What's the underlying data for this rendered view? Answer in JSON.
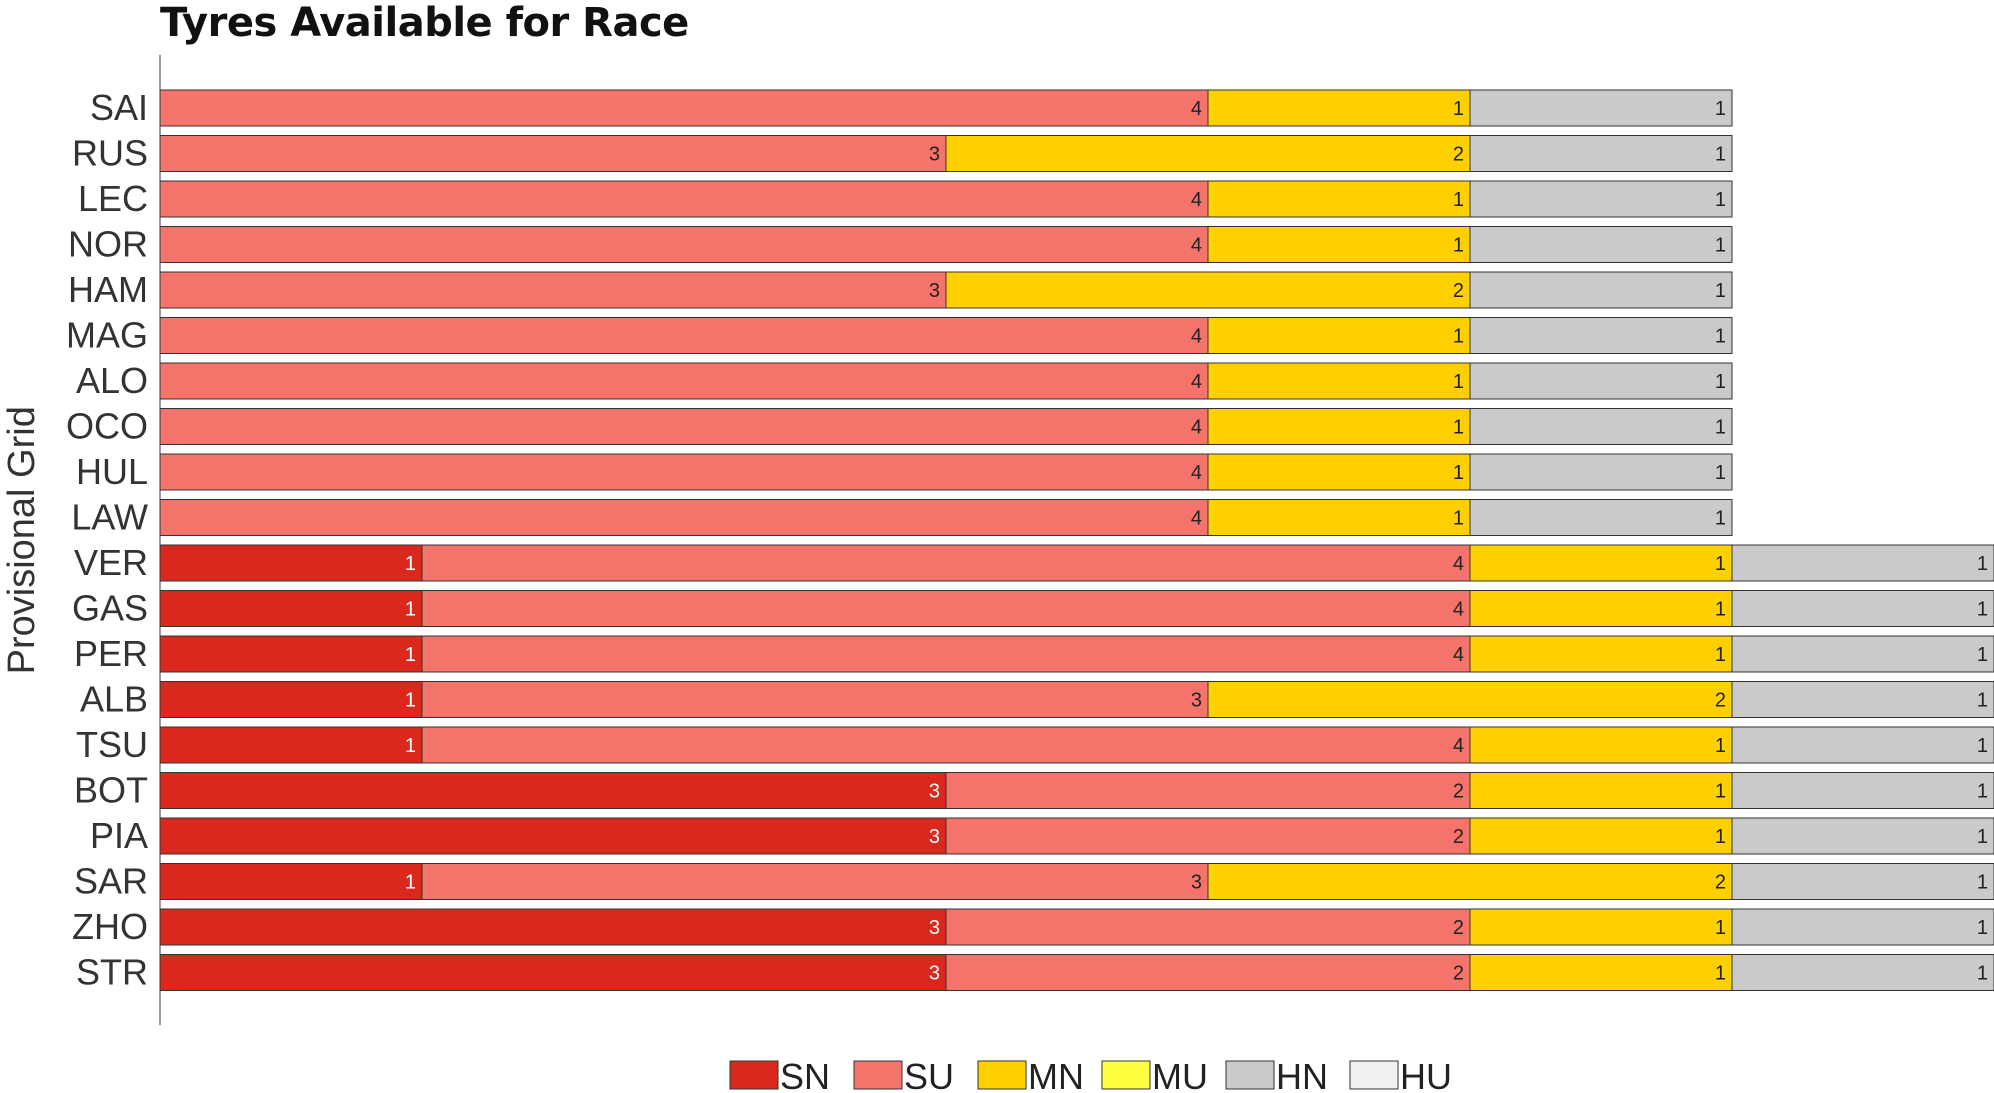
{
  "chart_data": {
    "type": "bar",
    "orientation": "horizontal",
    "stacked": true,
    "title": "Tyres Available for Race",
    "ylabel": "Provisional Grid",
    "xlabel": "",
    "categories": [
      "SAI",
      "RUS",
      "LEC",
      "NOR",
      "HAM",
      "MAG",
      "ALO",
      "OCO",
      "HUL",
      "LAW",
      "VER",
      "GAS",
      "PER",
      "ALB",
      "TSU",
      "BOT",
      "PIA",
      "SAR",
      "ZHO",
      "STR"
    ],
    "xlim": [
      0,
      7
    ],
    "grid": false,
    "legend_position": "bottom",
    "series": [
      {
        "name": "SN",
        "color": "#da291c",
        "label_color": "#ffffff",
        "values": [
          0,
          0,
          0,
          0,
          0,
          0,
          0,
          0,
          0,
          0,
          1,
          1,
          1,
          1,
          1,
          3,
          3,
          1,
          3,
          3
        ]
      },
      {
        "name": "SU",
        "color": "#f4736a",
        "label_color": "#222222",
        "values": [
          4,
          3,
          4,
          4,
          3,
          4,
          4,
          4,
          4,
          4,
          4,
          4,
          4,
          3,
          4,
          2,
          2,
          3,
          2,
          2
        ]
      },
      {
        "name": "MN",
        "color": "#ffd000",
        "label_color": "#222222",
        "values": [
          1,
          2,
          1,
          1,
          2,
          1,
          1,
          1,
          1,
          1,
          1,
          1,
          1,
          2,
          1,
          1,
          1,
          2,
          1,
          1
        ]
      },
      {
        "name": "MU",
        "color": "#ffff3f",
        "label_color": "#222222",
        "values": [
          0,
          0,
          0,
          0,
          0,
          0,
          0,
          0,
          0,
          0,
          0,
          0,
          0,
          0,
          0,
          0,
          0,
          0,
          0,
          0
        ]
      },
      {
        "name": "HN",
        "color": "#cacaca",
        "label_color": "#222222",
        "values": [
          1,
          1,
          1,
          1,
          1,
          1,
          1,
          1,
          1,
          1,
          1,
          1,
          1,
          1,
          1,
          1,
          1,
          1,
          1,
          1
        ]
      },
      {
        "name": "HU",
        "color": "#f0f0f0",
        "label_color": "#222222",
        "values": [
          0,
          0,
          0,
          0,
          0,
          0,
          0,
          0,
          0,
          0,
          0,
          0,
          0,
          0,
          0,
          0,
          0,
          0,
          0,
          0
        ]
      }
    ]
  }
}
